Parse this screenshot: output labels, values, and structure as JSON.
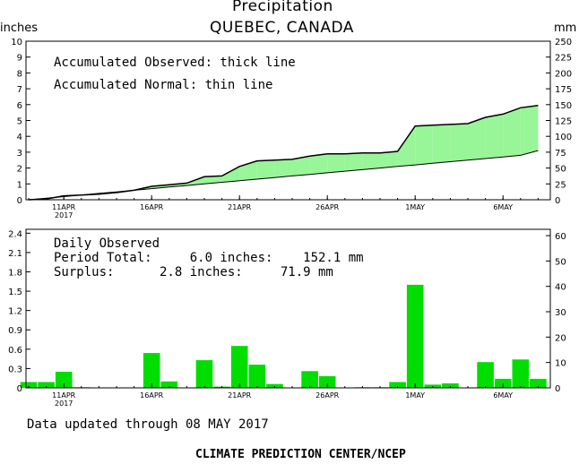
{
  "header": {
    "title": "Precipitation",
    "subtitle": "QUEBEC, CANADA",
    "left_unit": "inches",
    "right_unit": "mm"
  },
  "top_panel": {
    "legend_line1": "Accumulated Observed: thick line",
    "legend_line2": "Accumulated Normal: thin line"
  },
  "bottom_panel": {
    "heading": "Daily Observed",
    "period_line": "Period Total:     6.0 inches:    152.1 mm",
    "surplus_line": "Surplus:      2.8 inches:     71.9 mm"
  },
  "footer": {
    "updated": "Data updated through 08 MAY 2017",
    "credit": "CLIMATE PREDICTION CENTER/NCEP"
  },
  "colors": {
    "surplus_fill": "#98f598",
    "deficit_fill": "#b88a7a",
    "bar_fill": "#00dd00",
    "axis": "#000000"
  },
  "chart_data": [
    {
      "type": "area",
      "x": [
        "2017-04-09",
        "2017-04-10",
        "2017-04-11",
        "2017-04-12",
        "2017-04-13",
        "2017-04-14",
        "2017-04-15",
        "2017-04-16",
        "2017-04-17",
        "2017-04-18",
        "2017-04-19",
        "2017-04-20",
        "2017-04-21",
        "2017-04-22",
        "2017-04-23",
        "2017-04-24",
        "2017-04-25",
        "2017-04-26",
        "2017-04-27",
        "2017-04-28",
        "2017-04-29",
        "2017-04-30",
        "2017-05-01",
        "2017-05-02",
        "2017-05-03",
        "2017-05-04",
        "2017-05-05",
        "2017-05-06",
        "2017-05-07",
        "2017-05-08"
      ],
      "series": [
        {
          "values": [
            0.0,
            0.05,
            0.25,
            0.3,
            0.35,
            0.45,
            0.6,
            0.85,
            0.95,
            1.05,
            1.45,
            1.5,
            2.1,
            2.45,
            2.5,
            2.55,
            2.75,
            2.9,
            2.9,
            2.95,
            2.95,
            3.05,
            4.65,
            4.7,
            4.75,
            4.8,
            5.2,
            5.4,
            5.8,
            5.95
          ]
        },
        {
          "values": [
            0.0,
            0.1,
            0.2,
            0.3,
            0.4,
            0.5,
            0.6,
            0.7,
            0.8,
            0.9,
            1.0,
            1.1,
            1.2,
            1.3,
            1.4,
            1.5,
            1.6,
            1.7,
            1.8,
            1.9,
            2.0,
            2.1,
            2.2,
            2.3,
            2.4,
            2.5,
            2.6,
            2.7,
            2.8,
            3.1
          ]
        }
      ],
      "x_tick_labels": [
        "11APR",
        "16APR",
        "21APR",
        "26APR",
        "1MAY",
        "6MAY"
      ],
      "x_tick_dates": [
        "2017-04-11",
        "2017-04-16",
        "2017-04-21",
        "2017-04-26",
        "2017-05-01",
        "2017-05-06"
      ],
      "year_label": "2017",
      "ylabel": "inches",
      "y2label": "mm",
      "ylim": [
        0,
        10
      ],
      "y_ticks": [
        0,
        1,
        2,
        3,
        4,
        5,
        6,
        7,
        8,
        9,
        10
      ],
      "y2lim": [
        0,
        250
      ],
      "y2_ticks": [
        0,
        25,
        50,
        75,
        100,
        125,
        150,
        175,
        200,
        225,
        250
      ],
      "grid": false
    },
    {
      "type": "bar",
      "x": [
        "2017-04-09",
        "2017-04-10",
        "2017-04-11",
        "2017-04-12",
        "2017-04-13",
        "2017-04-14",
        "2017-04-15",
        "2017-04-16",
        "2017-04-17",
        "2017-04-18",
        "2017-04-19",
        "2017-04-20",
        "2017-04-21",
        "2017-04-22",
        "2017-04-23",
        "2017-04-24",
        "2017-04-25",
        "2017-04-26",
        "2017-04-27",
        "2017-04-28",
        "2017-04-29",
        "2017-04-30",
        "2017-05-01",
        "2017-05-02",
        "2017-05-03",
        "2017-05-04",
        "2017-05-05",
        "2017-05-06",
        "2017-05-07",
        "2017-05-08"
      ],
      "values": [
        0.09,
        0.09,
        0.25,
        0.01,
        0.0,
        0.0,
        0.0,
        0.54,
        0.1,
        0.0,
        0.43,
        0.02,
        0.65,
        0.36,
        0.06,
        0.0,
        0.26,
        0.18,
        0.0,
        0.01,
        0.01,
        0.09,
        1.6,
        0.05,
        0.07,
        0.0,
        0.4,
        0.14,
        0.44,
        0.14
      ],
      "x_tick_labels": [
        "11APR",
        "16APR",
        "21APR",
        "26APR",
        "1MAY",
        "6MAY"
      ],
      "x_tick_dates": [
        "2017-04-11",
        "2017-04-16",
        "2017-04-21",
        "2017-04-26",
        "2017-05-01",
        "2017-05-06"
      ],
      "year_label": "2017",
      "ylim": [
        0,
        2.46
      ],
      "y_ticks": [
        "0",
        "0.3",
        "0.6",
        "0.9",
        "1.2",
        "1.5",
        "1.8",
        "2.1",
        "2.4"
      ],
      "y2_ticks": [
        0,
        10,
        20,
        30,
        40,
        50,
        60
      ],
      "grid": false
    }
  ]
}
